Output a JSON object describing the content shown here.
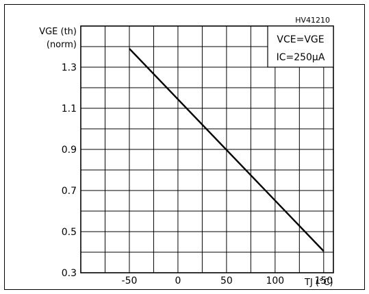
{
  "chart_data": {
    "type": "line",
    "figure_id": "HV41210",
    "ylabel": "VGE (th)",
    "ylabel_sub": "(norm)",
    "xlabel": "TJ (°C)",
    "xlim": [
      -100,
      160
    ],
    "ylim": [
      0.3,
      1.5
    ],
    "x_ticks": [
      -50,
      0,
      50,
      100,
      150
    ],
    "x_tick_labels": [
      "-50",
      "0",
      "50",
      "100",
      "150"
    ],
    "y_ticks": [
      0.3,
      0.5,
      0.7,
      0.9,
      1.1,
      1.3
    ],
    "y_tick_labels": [
      "0.3",
      "0.5",
      "0.7",
      "0.9",
      "1.1",
      "1.3"
    ],
    "grid": true,
    "legend_box": [
      "VCE=VGE",
      "IC=250µA"
    ],
    "legend_placement": "top-right",
    "series": [
      {
        "x": [
          -50,
          150
        ],
        "y": [
          1.39,
          0.405
        ]
      }
    ]
  }
}
